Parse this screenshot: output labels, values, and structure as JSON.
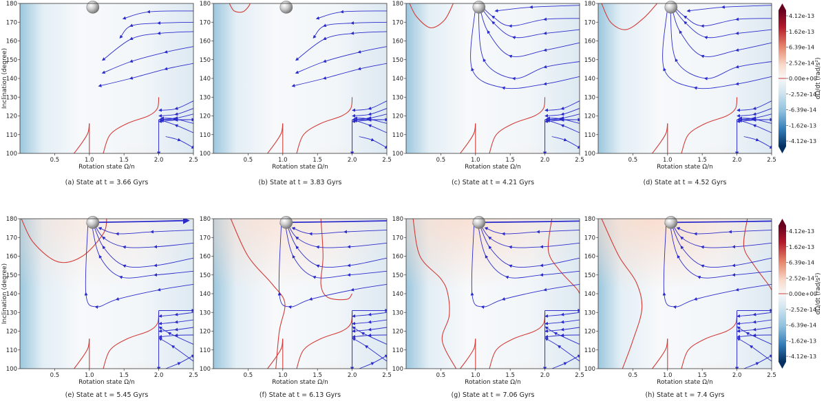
{
  "figure": {
    "ylabel": "Inclination (degree)",
    "xlabel": "Rotation state Ω/n"
  },
  "colors": {
    "contour": "#d43a36",
    "flow": "#2b2bcc",
    "cool": "#2a7ab4",
    "warm": "#d9543f"
  },
  "colorbar": {
    "label": "dΩ/dt (rad/s²)",
    "ticks": [
      "4.12e-13",
      "1.62e-13",
      "6.39e-14",
      "2.52e-14",
      "0.00e+00",
      "-2.52e-14",
      "-6.39e-14",
      "-1.62e-13",
      "-4.12e-13"
    ]
  },
  "chart_data": [
    {
      "type": "heatmap",
      "caption": "(a) State at t = 3.66 Gyrs",
      "time_gyr": 3.66,
      "xlim": [
        0,
        2.5
      ],
      "ylim": [
        100,
        180
      ],
      "xticks": [
        "0.5",
        "1.0",
        "1.5",
        "2.0",
        "2.5"
      ],
      "yticks": [
        "100",
        "110",
        "120",
        "130",
        "140",
        "150",
        "160",
        "170",
        "180"
      ],
      "planet_marker": {
        "x": 1.05,
        "y": 178
      }
    },
    {
      "type": "heatmap",
      "caption": "(b) State at t = 3.83 Gyrs",
      "time_gyr": 3.83,
      "xlim": [
        0,
        2.5
      ],
      "ylim": [
        100,
        180
      ],
      "xticks": [
        "0.5",
        "1.0",
        "1.5",
        "2.0",
        "2.5"
      ],
      "yticks": [
        "100",
        "110",
        "120",
        "130",
        "140",
        "150",
        "160",
        "170",
        "180"
      ],
      "planet_marker": {
        "x": 1.05,
        "y": 178
      }
    },
    {
      "type": "heatmap",
      "caption": "(c) State at t = 4.21 Gyrs",
      "time_gyr": 4.21,
      "xlim": [
        0,
        2.5
      ],
      "ylim": [
        100,
        180
      ],
      "xticks": [
        "0.5",
        "1.0",
        "1.5",
        "2.0",
        "2.5"
      ],
      "yticks": [
        "100",
        "110",
        "120",
        "130",
        "140",
        "150",
        "160",
        "170",
        "180"
      ],
      "planet_marker": {
        "x": 1.05,
        "y": 178
      }
    },
    {
      "type": "heatmap",
      "caption": "(d) State at t = 4.52 Gyrs",
      "time_gyr": 4.52,
      "xlim": [
        0,
        2.5
      ],
      "ylim": [
        100,
        180
      ],
      "xticks": [
        "0.5",
        "1.0",
        "1.5",
        "2.0",
        "2.5"
      ],
      "yticks": [
        "100",
        "110",
        "120",
        "130",
        "140",
        "150",
        "160",
        "170",
        "180"
      ],
      "planet_marker": {
        "x": 1.05,
        "y": 178
      }
    },
    {
      "type": "heatmap",
      "caption": "(e) State at t = 5.45 Gyrs",
      "time_gyr": 5.45,
      "xlim": [
        0,
        2.5
      ],
      "ylim": [
        100,
        180
      ],
      "xticks": [
        "0.5",
        "1.0",
        "1.5",
        "2.0",
        "2.5"
      ],
      "yticks": [
        "100",
        "110",
        "120",
        "130",
        "140",
        "150",
        "160",
        "170",
        "180"
      ],
      "planet_marker": {
        "x": 1.05,
        "y": 178
      }
    },
    {
      "type": "heatmap",
      "caption": "(f) State at t = 6.13 Gyrs",
      "time_gyr": 6.13,
      "xlim": [
        0,
        2.5
      ],
      "ylim": [
        100,
        180
      ],
      "xticks": [
        "0.5",
        "1.0",
        "1.5",
        "2.0",
        "2.5"
      ],
      "yticks": [
        "100",
        "110",
        "120",
        "130",
        "140",
        "150",
        "160",
        "170",
        "180"
      ],
      "planet_marker": {
        "x": 1.05,
        "y": 178
      }
    },
    {
      "type": "heatmap",
      "caption": "(g) State at t = 7.06 Gyrs",
      "time_gyr": 7.06,
      "xlim": [
        0,
        2.5
      ],
      "ylim": [
        100,
        180
      ],
      "xticks": [
        "0.5",
        "1.0",
        "1.5",
        "2.0",
        "2.5"
      ],
      "yticks": [
        "100",
        "110",
        "120",
        "130",
        "140",
        "150",
        "160",
        "170",
        "180"
      ],
      "planet_marker": {
        "x": 1.05,
        "y": 178
      }
    },
    {
      "type": "heatmap",
      "caption": "(h) State at t = 7.4 Gyrs",
      "time_gyr": 7.4,
      "xlim": [
        0,
        2.5
      ],
      "ylim": [
        100,
        180
      ],
      "xticks": [
        "0.5",
        "1.0",
        "1.5",
        "2.0",
        "2.5"
      ],
      "yticks": [
        "100",
        "110",
        "120",
        "130",
        "140",
        "150",
        "160",
        "170",
        "180"
      ],
      "planet_marker": {
        "x": 1.05,
        "y": 178
      }
    }
  ]
}
